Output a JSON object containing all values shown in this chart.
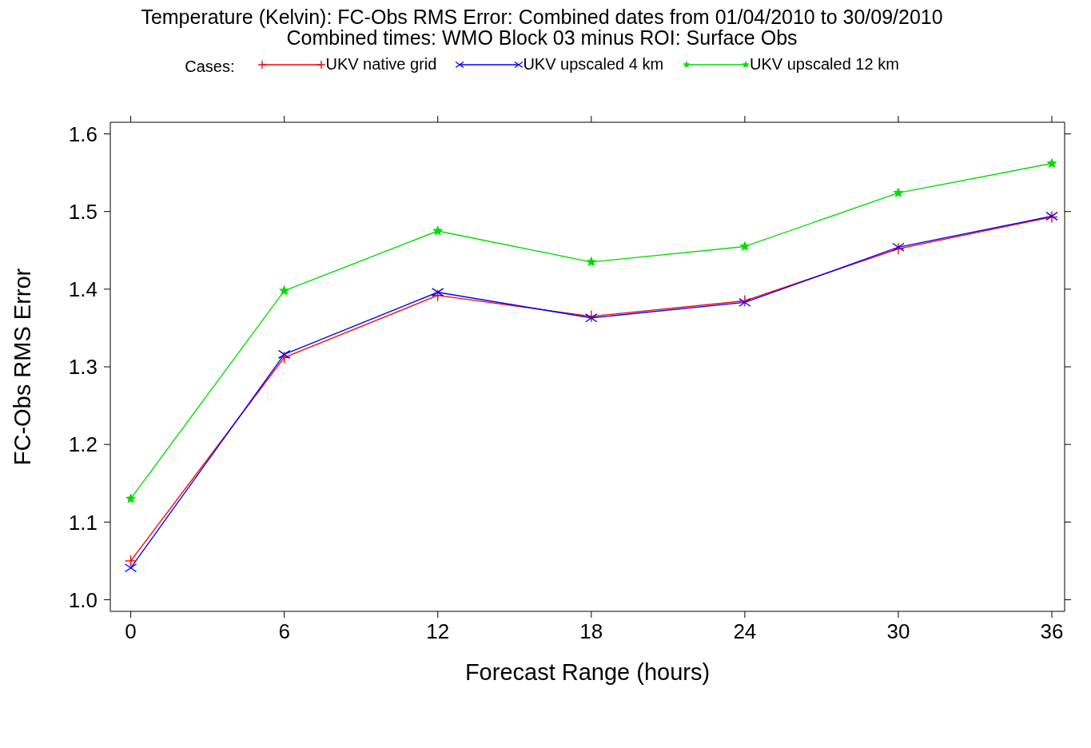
{
  "chart_data": {
    "type": "line",
    "title": "Temperature (Kelvin): FC-Obs RMS Error: Combined dates from 01/04/2010 to 30/09/2010",
    "subtitle": "Combined times: WMO Block 03 minus ROI: Surface Obs",
    "legend_title": "Cases:",
    "xlabel": "Forecast Range (hours)",
    "ylabel": "FC-Obs RMS Error",
    "x": [
      0,
      6,
      12,
      18,
      24,
      30,
      36
    ],
    "series": [
      {
        "name": "UKV native grid",
        "color": "#ff0000",
        "marker": "plus",
        "values": [
          1.05,
          1.312,
          1.392,
          1.365,
          1.385,
          1.452,
          1.493
        ]
      },
      {
        "name": "UKV upscaled 4 km",
        "color": "#0000ff",
        "marker": "cross",
        "values": [
          1.041,
          1.316,
          1.396,
          1.363,
          1.383,
          1.454,
          1.494
        ]
      },
      {
        "name": "UKV upscaled 12 km",
        "color": "#00dd00",
        "marker": "star",
        "values": [
          1.13,
          1.398,
          1.475,
          1.435,
          1.455,
          1.524,
          1.562
        ]
      }
    ],
    "xlim": [
      -0.8,
      36.5
    ],
    "xticks": [
      0,
      6,
      12,
      18,
      24,
      30,
      36
    ],
    "ylim": [
      0.985,
      1.615
    ],
    "yticks": [
      {
        "value": 1.0,
        "label": "1.0"
      },
      {
        "value": 1.1,
        "label": "1.1"
      },
      {
        "value": 1.2,
        "label": "1.2"
      },
      {
        "value": 1.3,
        "label": "1.3"
      },
      {
        "value": 1.4,
        "label": "1.4"
      },
      {
        "value": 1.5,
        "label": "1.5"
      },
      {
        "value": 1.6,
        "label": "1.6"
      }
    ],
    "legend": "top",
    "grid": false,
    "line_style": "solid"
  }
}
